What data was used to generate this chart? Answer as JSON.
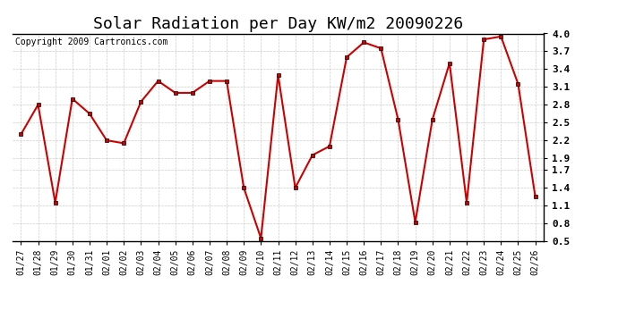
{
  "title": "Solar Radiation per Day KW/m2 20090226",
  "copyright": "Copyright 2009 Cartronics.com",
  "dates": [
    "01/27",
    "01/28",
    "01/29",
    "01/30",
    "01/31",
    "02/01",
    "02/02",
    "02/03",
    "02/04",
    "02/05",
    "02/06",
    "02/07",
    "02/08",
    "02/09",
    "02/10",
    "02/11",
    "02/12",
    "02/13",
    "02/14",
    "02/15",
    "02/16",
    "02/17",
    "02/18",
    "02/19",
    "02/20",
    "02/21",
    "02/22",
    "02/23",
    "02/24",
    "02/25",
    "02/26"
  ],
  "values": [
    2.3,
    2.8,
    1.15,
    2.9,
    2.65,
    2.2,
    2.15,
    2.85,
    3.2,
    3.0,
    3.0,
    3.2,
    3.2,
    1.4,
    0.55,
    3.3,
    1.4,
    1.95,
    2.1,
    3.6,
    3.85,
    3.75,
    2.55,
    0.82,
    2.55,
    3.5,
    1.15,
    3.9,
    3.95,
    3.15,
    1.25
  ],
  "line_color": "#cc0000",
  "marker": "s",
  "marker_size": 3,
  "ylim": [
    0.5,
    4.0
  ],
  "yticks": [
    0.5,
    0.8,
    1.1,
    1.4,
    1.7,
    1.9,
    2.2,
    2.5,
    2.8,
    3.1,
    3.4,
    3.7,
    4.0
  ],
  "bg_color": "#ffffff",
  "grid_color": "#cccccc",
  "title_fontsize": 13,
  "copyright_fontsize": 7,
  "tick_fontsize": 7,
  "ytick_fontsize": 8
}
